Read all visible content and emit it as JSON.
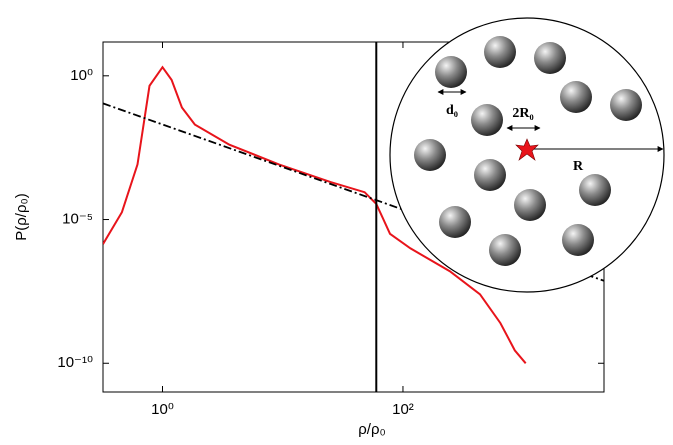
{
  "chart_data": {
    "type": "line",
    "xlabel": "ρ/ρ₀",
    "ylabel": "P(ρ/ρ₀)",
    "xscale": "log",
    "yscale": "log",
    "xlim": [
      0.32,
      4700
    ],
    "ylim": [
      1e-11,
      15
    ],
    "xticks": [
      {
        "value": 1,
        "label": "10⁰"
      },
      {
        "value": 100,
        "label": "10²"
      }
    ],
    "yticks": [
      {
        "value": 1e-10,
        "label": "10⁻¹⁰"
      },
      {
        "value": 1e-05,
        "label": "10⁻⁵"
      },
      {
        "value": 1,
        "label": "10⁰"
      }
    ],
    "series": [
      {
        "color": "#e8141b",
        "style": "solid",
        "x": [
          0.32,
          0.46,
          0.62,
          0.78,
          1.0,
          1.19,
          1.45,
          1.86,
          3.6,
          9.3,
          25,
          48,
          60,
          78,
          115,
          245,
          437,
          646,
          851,
          1050
        ],
        "values": [
          1.4e-06,
          1.8e-05,
          0.00083,
          0.45,
          2.0,
          0.72,
          0.079,
          0.02,
          0.004,
          0.00083,
          0.0002,
          8.9e-05,
          3.5e-05,
          3.2e-06,
          1e-06,
          1.6e-07,
          2.5e-08,
          2.5e-09,
          2.8e-10,
          1e-10
        ]
      },
      {
        "color": "#000000",
        "style": "dashdot",
        "x": [
          0.32,
          4700
        ],
        "values": [
          0.11,
          7.4e-08
        ]
      }
    ],
    "vlines": [
      60
    ],
    "annotations": [
      "d₀",
      "2R₀",
      "R"
    ]
  }
}
